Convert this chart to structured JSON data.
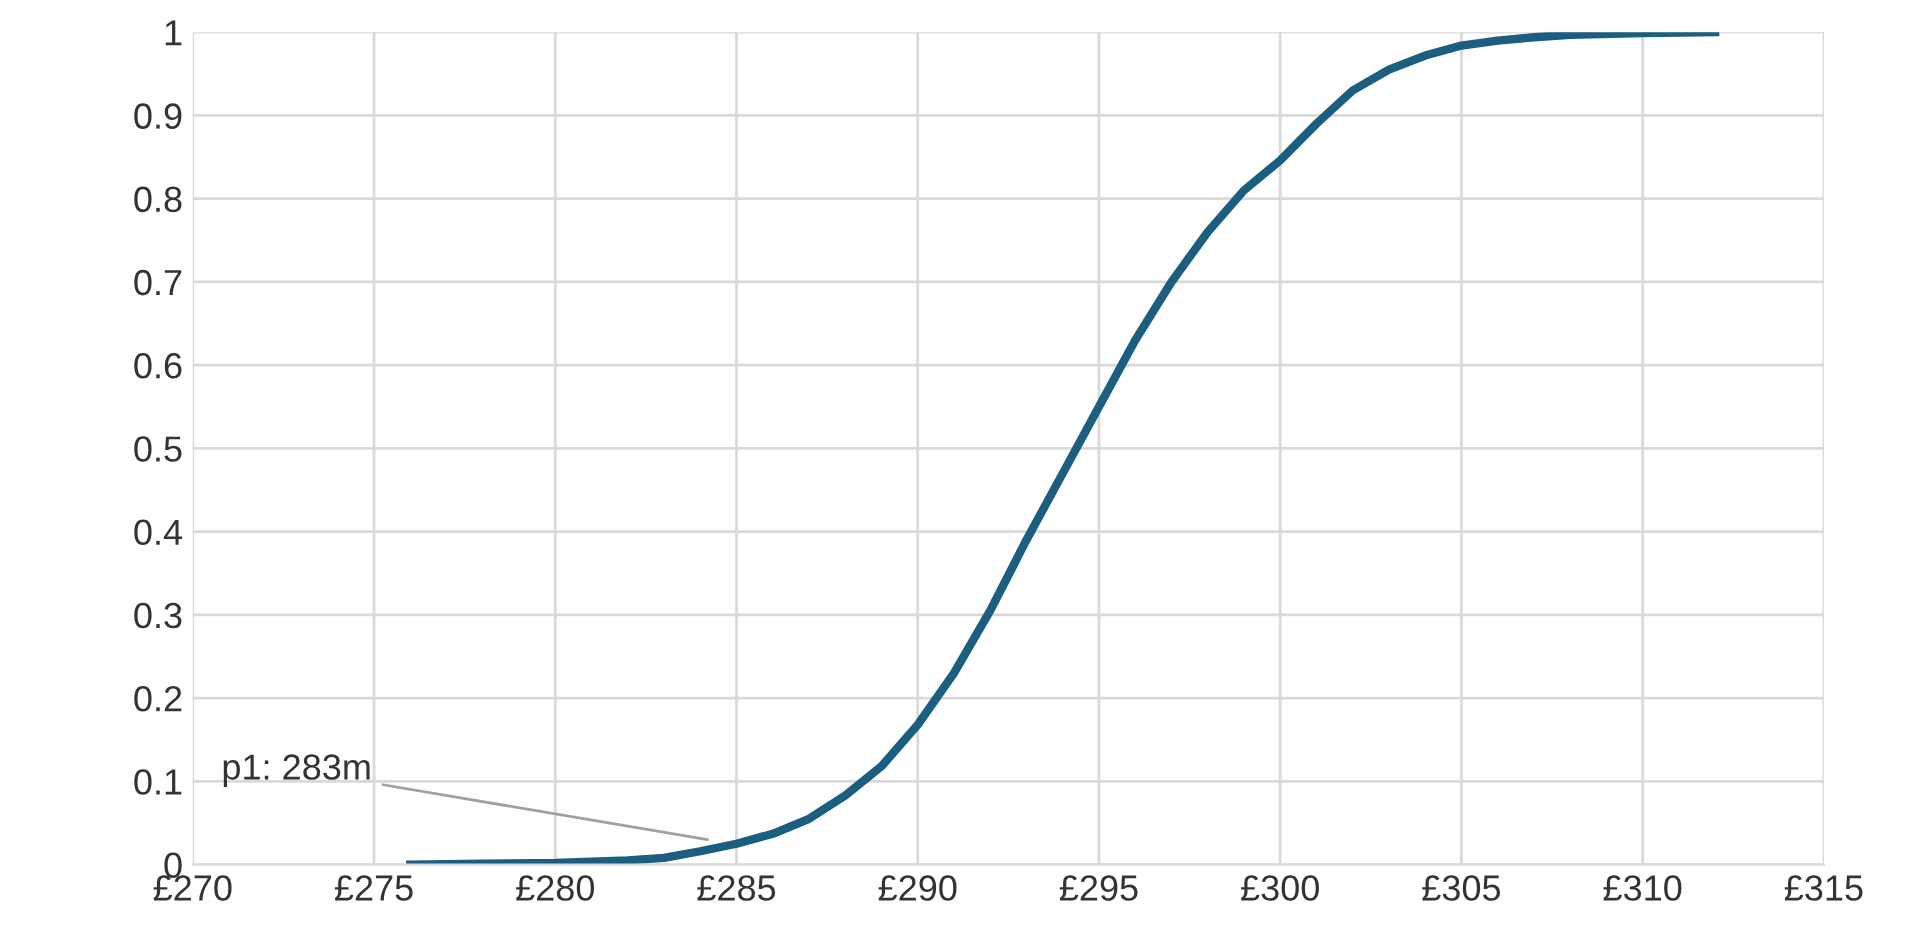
{
  "chart_data": {
    "type": "line",
    "x": [
      276,
      278,
      280,
      282,
      283,
      284,
      285,
      286,
      287,
      288,
      289,
      290,
      291,
      292,
      293,
      294,
      295,
      296,
      297,
      298,
      299,
      300,
      301,
      302,
      303,
      304,
      305,
      306,
      307,
      308,
      310,
      312
    ],
    "series": [
      {
        "color": "#1b5e80",
        "values": [
          0,
          0.001,
          0.002,
          0.005,
          0.008,
          0.016,
          0.025,
          0.037,
          0.055,
          0.083,
          0.118,
          0.168,
          0.23,
          0.305,
          0.39,
          0.47,
          0.55,
          0.63,
          0.7,
          0.76,
          0.81,
          0.846,
          0.89,
          0.93,
          0.955,
          0.972,
          0.984,
          0.99,
          0.994,
          0.997,
          0.999,
          1.0
        ]
      }
    ],
    "xlim": [
      270,
      315
    ],
    "xticks": [
      {
        "value": 270,
        "label": "£270"
      },
      {
        "value": 275,
        "label": "£275"
      },
      {
        "value": 280,
        "label": "£280"
      },
      {
        "value": 285,
        "label": "£285"
      },
      {
        "value": 290,
        "label": "£290"
      },
      {
        "value": 295,
        "label": "£295"
      },
      {
        "value": 300,
        "label": "£300"
      },
      {
        "value": 305,
        "label": "£305"
      },
      {
        "value": 310,
        "label": "£310"
      },
      {
        "value": 315,
        "label": "£315"
      }
    ],
    "ylim": [
      0,
      1
    ],
    "yticks": [
      0,
      0.1,
      0.2,
      0.3,
      0.4,
      0.5,
      0.6,
      0.7,
      0.8,
      0.9,
      1
    ],
    "grid": true,
    "marker": "none",
    "line_style": "solid",
    "annotations": [
      {
        "text": "p1: 283m",
        "x": 284.2,
        "y": 0.03
      }
    ]
  }
}
